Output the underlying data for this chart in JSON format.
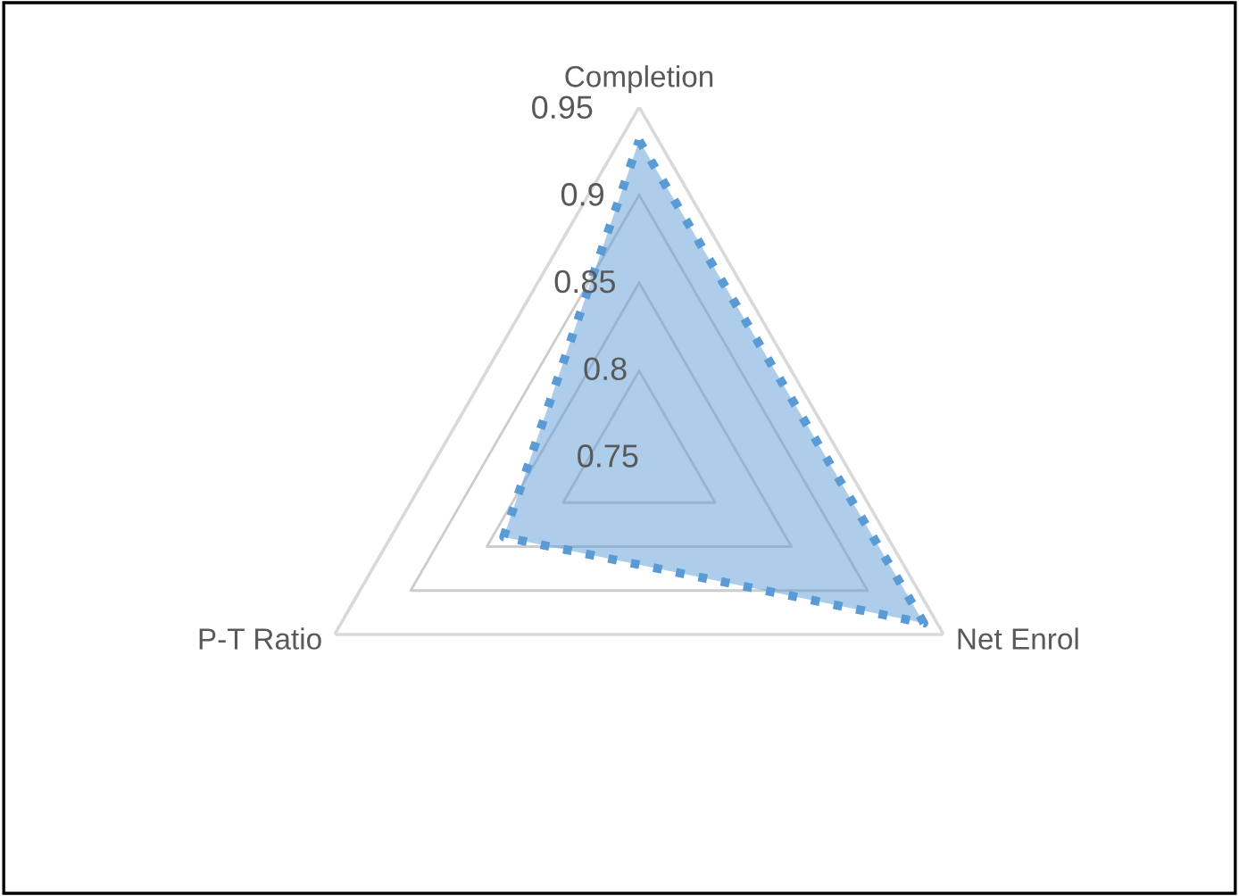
{
  "chart_data": {
    "type": "radar",
    "categories": [
      "Completion",
      "Net Enrol",
      "P-T Ratio"
    ],
    "series": [
      {
        "color": "#5b9bd5",
        "values": [
          0.931,
          0.937,
          0.839
        ],
        "line_style": "dotted"
      }
    ],
    "ylim": [
      0.75,
      0.95
    ],
    "yticks": [
      0.75,
      0.8,
      0.85,
      0.9,
      0.95
    ],
    "grid": true,
    "marker": "none"
  }
}
